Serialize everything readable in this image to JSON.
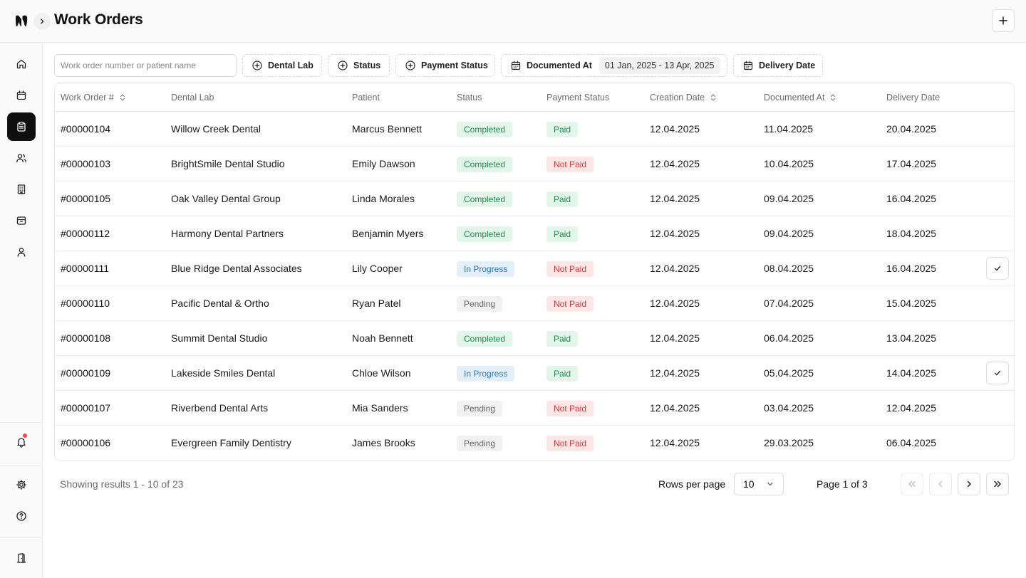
{
  "header": {
    "title": "Work Orders",
    "logo_icon": "tooth-logo-icon",
    "expand_icon": "chevron-right-icon",
    "add_icon": "plus-icon"
  },
  "sidebar": {
    "items": [
      {
        "name": "home",
        "icon": "home-icon",
        "active": false
      },
      {
        "name": "calendar",
        "icon": "calendar-icon",
        "active": false
      },
      {
        "name": "work-orders",
        "icon": "clipboard-icon",
        "active": true
      },
      {
        "name": "users",
        "icon": "users-icon",
        "active": false
      },
      {
        "name": "buildings",
        "icon": "building-icon",
        "active": false
      },
      {
        "name": "inbox",
        "icon": "archive-icon",
        "active": false
      },
      {
        "name": "profile",
        "icon": "user-icon",
        "active": false
      }
    ],
    "bottom": [
      {
        "name": "notifications",
        "icon": "bell-icon",
        "has_dot": true
      },
      {
        "name": "settings",
        "icon": "gear-icon"
      },
      {
        "name": "help",
        "icon": "help-circle-icon"
      },
      {
        "name": "logout",
        "icon": "door-icon"
      }
    ]
  },
  "filters": {
    "search_placeholder": "Work order number or patient name",
    "search_value": "",
    "dental_lab": "Dental Lab",
    "status": "Status",
    "payment_status": "Payment Status",
    "documented_at": "Documented At",
    "documented_range": "01 Jan, 2025 - 13 Apr, 2025",
    "delivery_date": "Delivery Date"
  },
  "table": {
    "columns": [
      "Work Order #",
      "Dental Lab",
      "Patient",
      "Status",
      "Payment Status",
      "Creation Date",
      "Documented At",
      "Delivery Date"
    ],
    "rows": [
      {
        "wo": "#00000104",
        "lab": "Willow Creek Dental",
        "patient": "Marcus Bennett",
        "status": "Completed",
        "payment": "Paid",
        "created": "12.04.2025",
        "documented": "11.04.2025",
        "delivery": "20.04.2025",
        "checked": false
      },
      {
        "wo": "#00000103",
        "lab": "BrightSmile Dental Studio",
        "patient": "Emily Dawson",
        "status": "Completed",
        "payment": "Not Paid",
        "created": "12.04.2025",
        "documented": "10.04.2025",
        "delivery": "17.04.2025",
        "checked": false
      },
      {
        "wo": "#00000105",
        "lab": "Oak Valley Dental Group",
        "patient": "Linda Morales",
        "status": "Completed",
        "payment": "Paid",
        "created": "12.04.2025",
        "documented": "09.04.2025",
        "delivery": "16.04.2025",
        "checked": false
      },
      {
        "wo": "#00000112",
        "lab": "Harmony Dental Partners",
        "patient": "Benjamin Myers",
        "status": "Completed",
        "payment": "Paid",
        "created": "12.04.2025",
        "documented": "09.04.2025",
        "delivery": "18.04.2025",
        "checked": false
      },
      {
        "wo": "#00000111",
        "lab": "Blue Ridge Dental Associates",
        "patient": "Lily Cooper",
        "status": "In Progress",
        "payment": "Not Paid",
        "created": "12.04.2025",
        "documented": "08.04.2025",
        "delivery": "16.04.2025",
        "checked": true
      },
      {
        "wo": "#00000110",
        "lab": "Pacific Dental & Ortho",
        "patient": "Ryan Patel",
        "status": "Pending",
        "payment": "Not Paid",
        "created": "12.04.2025",
        "documented": "07.04.2025",
        "delivery": "15.04.2025",
        "checked": false
      },
      {
        "wo": "#00000108",
        "lab": "Summit Dental Studio",
        "patient": "Noah Bennett",
        "status": "Completed",
        "payment": "Paid",
        "created": "12.04.2025",
        "documented": "06.04.2025",
        "delivery": "13.04.2025",
        "checked": false
      },
      {
        "wo": "#00000109",
        "lab": "Lakeside Smiles Dental",
        "patient": "Chloe Wilson",
        "status": "In Progress",
        "payment": "Paid",
        "created": "12.04.2025",
        "documented": "05.04.2025",
        "delivery": "14.04.2025",
        "checked": true
      },
      {
        "wo": "#00000107",
        "lab": "Riverbend Dental Arts",
        "patient": "Mia Sanders",
        "status": "Pending",
        "payment": "Not Paid",
        "created": "12.04.2025",
        "documented": "03.04.2025",
        "delivery": "12.04.2025",
        "checked": false
      },
      {
        "wo": "#00000106",
        "lab": "Evergreen Family Dentistry",
        "patient": "James Brooks",
        "status": "Pending",
        "payment": "Not Paid",
        "created": "12.04.2025",
        "documented": "29.03.2025",
        "delivery": "06.04.2025",
        "checked": false
      }
    ]
  },
  "footer": {
    "results": "Showing results 1 - 10 of 23",
    "rows_per_page_label": "Rows per page",
    "rows_per_page_value": "10",
    "page_label": "Page 1 of 3"
  },
  "colors": {
    "accent": "#0f0f0f",
    "completed_bg": "#e3f6ea",
    "completed_fg": "#1f8a4c",
    "in_progress_bg": "#e3f0fc",
    "in_progress_fg": "#2d78c4",
    "pending_bg": "#f1f1f1",
    "not_paid_bg": "#fde6e6",
    "not_paid_fg": "#d03a3a"
  }
}
